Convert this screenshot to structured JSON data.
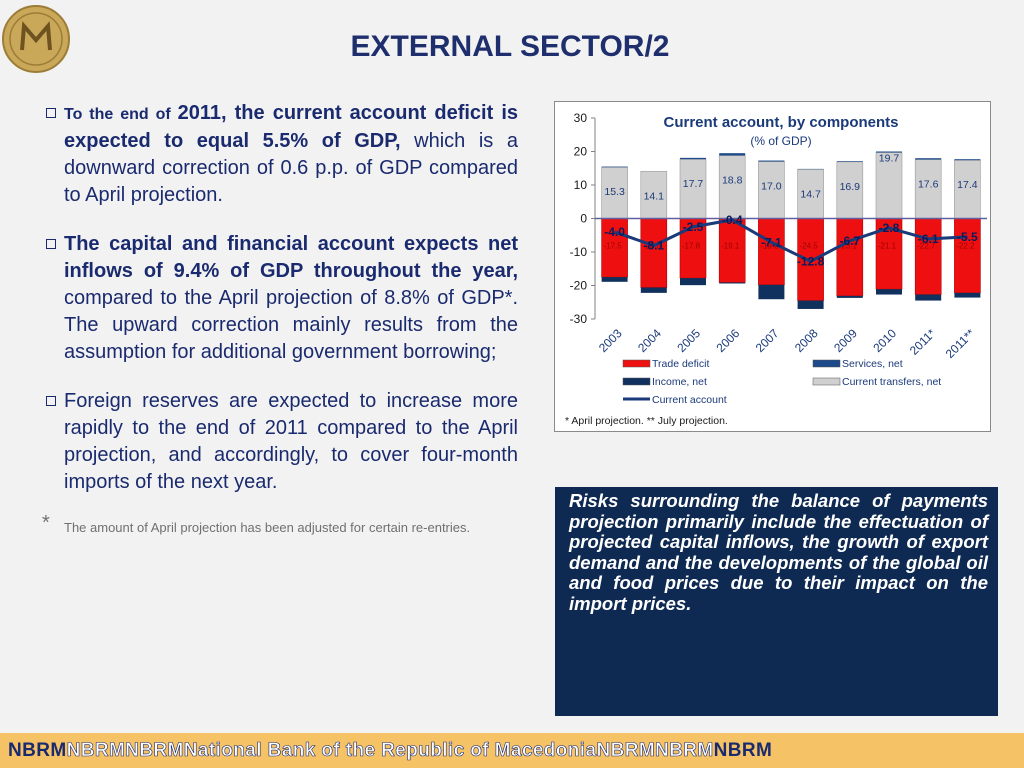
{
  "header": {
    "title": "EXTERNAL SECTOR/2",
    "logo_icon": "nbrm-coin-logo"
  },
  "bullets": {
    "b1": {
      "part1": "To the end of ",
      "part2": "2011, the current account deficit is expected to equal 5.5% of GDP,",
      "part3": " which is a downward correction of 0.6 p.p. of GDP compared to April projection."
    },
    "b2": {
      "part1": "The capital and financial account expects net inflows of 9.4% of GDP throughout the year,",
      "part2": " compared to the April projection of 8.8% of GDP*. The upward correction mainly results from the assumption for additional government borrowing;"
    },
    "b3": {
      "text": "Foreign reserves are expected to increase more rapidly to the end of 2011 compared to the April projection, and accordingly, to cover four-month imports of the next year."
    },
    "footnote": {
      "star": "*",
      "text": "The amount of April projection has been adjusted for certain re-entries."
    }
  },
  "risk_text": "Risks surrounding the balance of payments projection primarily include the effectuation of projected capital inflows, the growth of export demand and the developments of the global oil and food prices due to their impact on the import prices.",
  "footer": {
    "t1": "NBRM",
    "t2": "NBRMNBRMNational Bank of the Republic of MacedoniaNBRMNBRM",
    "t3": "NBRM"
  },
  "chart_data": {
    "type": "bar",
    "title": "Current account, by components",
    "subtitle": "(% of GDP)",
    "categories": [
      "2003",
      "2004",
      "2005",
      "2006",
      "2007",
      "2008",
      "2009",
      "2010",
      "2011*",
      "2011**"
    ],
    "ylim": [
      -30,
      30
    ],
    "yticks": [
      30,
      20,
      10,
      0,
      -10,
      -20,
      -30
    ],
    "series": [
      {
        "name": "Trade deficit",
        "values": [
          -17.5,
          -20.6,
          -17.8,
          -19.1,
          -19.8,
          -24.5,
          -23.1,
          -21.1,
          -22.7,
          -22.2
        ],
        "labels": [
          "-17.5",
          "-20.6",
          "-17.8",
          "-19.1",
          "-19.8",
          "-24.5",
          "-23.1",
          "-21.1",
          "-22.7",
          "-22.2"
        ],
        "color": "#ee1010"
      },
      {
        "name": "Services, net",
        "values": [
          0.2,
          0.0,
          0.4,
          0.7,
          0.3,
          0.1,
          0.2,
          0.3,
          0.4,
          0.3
        ],
        "color": "#1c4a8a"
      },
      {
        "name": "Income, net",
        "values": [
          -1.4,
          -1.6,
          -2.1,
          -0.3,
          -4.3,
          -2.5,
          -0.6,
          -1.6,
          -1.8,
          -1.4
        ],
        "color": "#10305e"
      },
      {
        "name": "Current transfers, net",
        "values": [
          15.3,
          14.1,
          17.7,
          18.8,
          17.0,
          14.7,
          16.9,
          19.7,
          17.6,
          17.4
        ],
        "labels": [
          "15.3",
          "14.1",
          "17.7",
          "18.8",
          "17.0",
          "14.7",
          "16.9",
          "19.7",
          "17.6",
          "17.4"
        ],
        "color": "#d0d0d0"
      },
      {
        "name": "Current account",
        "values": [
          -4.0,
          -8.1,
          -2.5,
          -0.4,
          -7.1,
          -12.8,
          -6.7,
          -2.8,
          -6.1,
          -5.5
        ],
        "labels": [
          "-4.0",
          "-8.1",
          "-2.5",
          "-0.4",
          "-7.1",
          "-12.8",
          "-6.7",
          "-2.8",
          "-6.1",
          "-5.5"
        ],
        "color": "#1a3a7a"
      }
    ],
    "legend": {
      "items": [
        "Trade deficit",
        "Services, net",
        "Income, net",
        "Current transfers, net",
        "Current account"
      ],
      "placement": "bottom"
    },
    "note": "* April projection. ** July projection."
  }
}
